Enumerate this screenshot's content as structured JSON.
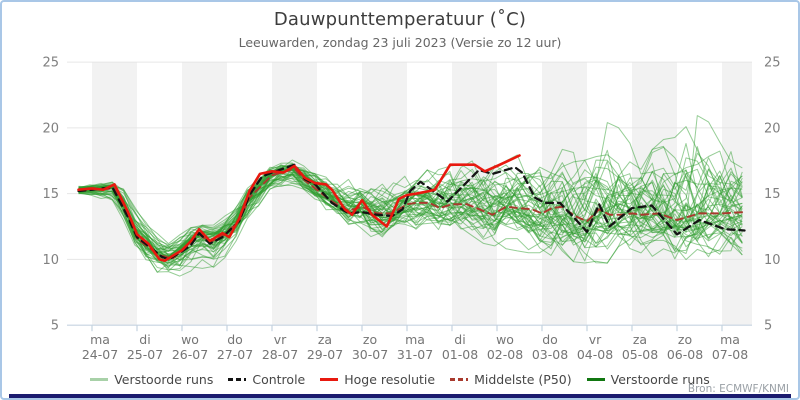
{
  "header": {
    "title": "Dauwpunttemperatuur (˚C)",
    "subtitle": "Leeuwarden, zondag 23 juli 2023 (Versie zo 12 uur)"
  },
  "source": "Bron: ECMWF/KNMI",
  "legend": {
    "items": [
      {
        "label": "Verstoorde runs",
        "swatch": "line",
        "color": "#a8d1a8"
      },
      {
        "label": "Controle",
        "swatch": "dashed",
        "color": "#141414"
      },
      {
        "label": "Hoge resolutie",
        "swatch": "line",
        "color": "#e8190f"
      },
      {
        "label": "Middelste (P50)",
        "swatch": "dashed",
        "color": "#a93a2e"
      },
      {
        "label": "Verstoorde runs",
        "swatch": "line",
        "color": "#117711"
      }
    ]
  },
  "chart_data": {
    "type": "line",
    "title": "Dauwpunttemperatuur (˚C)",
    "subtitle": "Leeuwarden, zondag 23 juli 2023 (Versie zo 12 uur)",
    "ylim": [
      5,
      25
    ],
    "yticks": [
      5,
      10,
      15,
      20,
      25
    ],
    "grid": true,
    "legend_position": "bottom",
    "t_unit": "days since ma 24-07 00:00; data runs from zo 23-07 ~17:00 (t=-0.3) to t=14.65",
    "x_days": [
      {
        "dow": "ma",
        "date": "24-07"
      },
      {
        "dow": "di",
        "date": "25-07"
      },
      {
        "dow": "wo",
        "date": "26-07"
      },
      {
        "dow": "do",
        "date": "27-07"
      },
      {
        "dow": "vr",
        "date": "28-07"
      },
      {
        "dow": "za",
        "date": "29-07"
      },
      {
        "dow": "zo",
        "date": "30-07"
      },
      {
        "dow": "ma",
        "date": "31-07"
      },
      {
        "dow": "di",
        "date": "01-08"
      },
      {
        "dow": "wo",
        "date": "02-08"
      },
      {
        "dow": "do",
        "date": "03-08"
      },
      {
        "dow": "vr",
        "date": "04-08"
      },
      {
        "dow": "za",
        "date": "05-08"
      },
      {
        "dow": "zo",
        "date": "06-08"
      },
      {
        "dow": "ma",
        "date": "07-08"
      }
    ],
    "series": [
      {
        "name": "Hoge resolutie",
        "style": "solid",
        "color": "#e8190f",
        "width": 2.6,
        "points": [
          [
            -0.3,
            15.3
          ],
          [
            0,
            15.4
          ],
          [
            0.25,
            15.3
          ],
          [
            0.5,
            15.7
          ],
          [
            0.8,
            13.6
          ],
          [
            1,
            11.9
          ],
          [
            1.25,
            11.2
          ],
          [
            1.5,
            10
          ],
          [
            1.62,
            9.9
          ],
          [
            1.85,
            10.4
          ],
          [
            2,
            10.7
          ],
          [
            2.2,
            11.4
          ],
          [
            2.38,
            12.3
          ],
          [
            2.62,
            11.4
          ],
          [
            2.9,
            12
          ],
          [
            3.05,
            11.7
          ],
          [
            3.27,
            13.1
          ],
          [
            3.5,
            15.2
          ],
          [
            3.73,
            16.5
          ],
          [
            4,
            16.7
          ],
          [
            4.25,
            16.6
          ],
          [
            4.5,
            17.1
          ],
          [
            4.73,
            16.2
          ],
          [
            4.96,
            15.8
          ],
          [
            5.2,
            15.7
          ],
          [
            5.33,
            15.3
          ],
          [
            5.62,
            13.8
          ],
          [
            5.78,
            13.4
          ],
          [
            6,
            14.5
          ],
          [
            6.22,
            13.4
          ],
          [
            6.55,
            12.5
          ],
          [
            6.82,
            14.6
          ],
          [
            7,
            14.9
          ],
          [
            7.2,
            15
          ],
          [
            7.5,
            15.2
          ],
          [
            7.62,
            15.3
          ],
          [
            7.96,
            17.2
          ],
          [
            8.5,
            17.2
          ],
          [
            8.73,
            16.7
          ],
          [
            9,
            17.1
          ],
          [
            9.25,
            17.5
          ],
          [
            9.5,
            17.9
          ]
        ]
      },
      {
        "name": "Controle",
        "style": "dashed",
        "color": "#141414",
        "width": 2.3,
        "points": [
          [
            -0.3,
            15.2
          ],
          [
            0,
            15.3
          ],
          [
            0.45,
            15.5
          ],
          [
            0.8,
            13.2
          ],
          [
            1,
            11.7
          ],
          [
            1.3,
            10.9
          ],
          [
            1.55,
            10.2
          ],
          [
            1.7,
            10
          ],
          [
            2,
            10.6
          ],
          [
            2.2,
            11.1
          ],
          [
            2.38,
            12
          ],
          [
            2.62,
            11.2
          ],
          [
            2.9,
            11.7
          ],
          [
            3.27,
            12.9
          ],
          [
            3.5,
            14.9
          ],
          [
            3.78,
            16.3
          ],
          [
            4,
            16.6
          ],
          [
            4.5,
            17.2
          ],
          [
            4.73,
            16.1
          ],
          [
            4.96,
            15.7
          ],
          [
            5.33,
            14.3
          ],
          [
            5.7,
            13.5
          ],
          [
            6,
            13.6
          ],
          [
            6.33,
            13.4
          ],
          [
            6.67,
            13.3
          ],
          [
            6.9,
            13.8
          ],
          [
            7.07,
            15.2
          ],
          [
            7.3,
            15.9
          ],
          [
            7.9,
            14.4
          ],
          [
            8.6,
            16.8
          ],
          [
            8.9,
            16.5
          ],
          [
            9.4,
            17
          ],
          [
            9.56,
            16.6
          ],
          [
            9.84,
            14.7
          ],
          [
            10.07,
            14.3
          ],
          [
            10.4,
            14.3
          ],
          [
            10.73,
            13.1
          ],
          [
            11,
            12.1
          ],
          [
            11.27,
            14.2
          ],
          [
            11.5,
            12.5
          ],
          [
            11.78,
            13.3
          ],
          [
            12,
            13.9
          ],
          [
            12.44,
            14.1
          ],
          [
            13,
            11.9
          ],
          [
            13.5,
            13
          ],
          [
            14.07,
            12.3
          ],
          [
            14.5,
            12.2
          ]
        ]
      },
      {
        "name": "Middelste (P50)",
        "style": "dashed",
        "color": "#a93a2e",
        "width": 2,
        "points": [
          [
            -0.3,
            15.2
          ],
          [
            0,
            15.3
          ],
          [
            0.5,
            15.4
          ],
          [
            0.8,
            13.4
          ],
          [
            1,
            11.6
          ],
          [
            1.5,
            10.3
          ],
          [
            1.8,
            10.1
          ],
          [
            2,
            10.7
          ],
          [
            2.38,
            11.9
          ],
          [
            2.62,
            11.3
          ],
          [
            2.9,
            11.8
          ],
          [
            3.27,
            12.9
          ],
          [
            3.5,
            14.7
          ],
          [
            4,
            16.4
          ],
          [
            4.5,
            16.9
          ],
          [
            4.73,
            16
          ],
          [
            4.96,
            15.4
          ],
          [
            5.33,
            14.4
          ],
          [
            5.7,
            13.7
          ],
          [
            6,
            14
          ],
          [
            6.33,
            13.5
          ],
          [
            6.67,
            13.5
          ],
          [
            7,
            14.2
          ],
          [
            7.2,
            14.3
          ],
          [
            7.5,
            14.3
          ],
          [
            7.73,
            13.9
          ],
          [
            8,
            14.2
          ],
          [
            8.33,
            14.2
          ],
          [
            8.9,
            13.4
          ],
          [
            9.2,
            14
          ],
          [
            9.5,
            13.9
          ],
          [
            9.78,
            13.8
          ],
          [
            10,
            13.5
          ],
          [
            10.22,
            13.9
          ],
          [
            10.44,
            14
          ],
          [
            10.73,
            13.3
          ],
          [
            11,
            12.9
          ],
          [
            11.27,
            13.8
          ],
          [
            11.5,
            13.4
          ],
          [
            11.78,
            13.4
          ],
          [
            12,
            13.5
          ],
          [
            12.22,
            13.4
          ],
          [
            12.6,
            13.5
          ],
          [
            13,
            13
          ],
          [
            13.5,
            13.5
          ],
          [
            14,
            13.5
          ],
          [
            14.5,
            13.6
          ]
        ]
      }
    ],
    "ensemble": {
      "name": "Verstoorde runs",
      "color": "#2f9e2f",
      "opacity": 0.5,
      "count": 50,
      "envelope": [
        [
          -0.3,
          15,
          15.6
        ],
        [
          0,
          14.8,
          15.7
        ],
        [
          0.5,
          14.3,
          15.9
        ],
        [
          0.8,
          12.3,
          15.4
        ],
        [
          1,
          10.3,
          13.5
        ],
        [
          1.5,
          8.2,
          11.8
        ],
        [
          1.8,
          7.9,
          11.5
        ],
        [
          2,
          8.3,
          12
        ],
        [
          2.38,
          9.3,
          12.8
        ],
        [
          2.62,
          9,
          12.6
        ],
        [
          3,
          10.3,
          13.4
        ],
        [
          3.5,
          12.8,
          15.8
        ],
        [
          4,
          15.2,
          17.2
        ],
        [
          4.5,
          15.6,
          17.6
        ],
        [
          4.96,
          14.3,
          16.9
        ],
        [
          5.33,
          13.3,
          16.4
        ],
        [
          5.8,
          12.2,
          16.2
        ],
        [
          6.2,
          11.2,
          16.3
        ],
        [
          6.6,
          11.7,
          16.4
        ],
        [
          7,
          12.2,
          16.6
        ],
        [
          7.5,
          11.8,
          17
        ],
        [
          8,
          11.8,
          17.4
        ],
        [
          8.5,
          11.3,
          17.5
        ],
        [
          9,
          11,
          17.9
        ],
        [
          9.5,
          10.5,
          18.4
        ],
        [
          10,
          10,
          18.5
        ],
        [
          10.5,
          9.9,
          18.8
        ],
        [
          11,
          9.7,
          19
        ],
        [
          11.55,
          9.7,
          20.8
        ],
        [
          12,
          9.9,
          18.6
        ],
        [
          12.5,
          9.9,
          19
        ],
        [
          13,
          9.6,
          19.3
        ],
        [
          13.55,
          9.4,
          21.5
        ],
        [
          14,
          9.9,
          18.6
        ],
        [
          14.65,
          10.2,
          19.3
        ]
      ]
    }
  },
  "style": {
    "band_color": "#f2f2f2",
    "grid_color": "#e6e6e6",
    "axis_color": "#c5d3e0",
    "axis_text_color": "#808080",
    "xlabel_color": "#757575",
    "footer_bar_color": "#1b1b6f",
    "border_color": "#a9c7e7"
  }
}
